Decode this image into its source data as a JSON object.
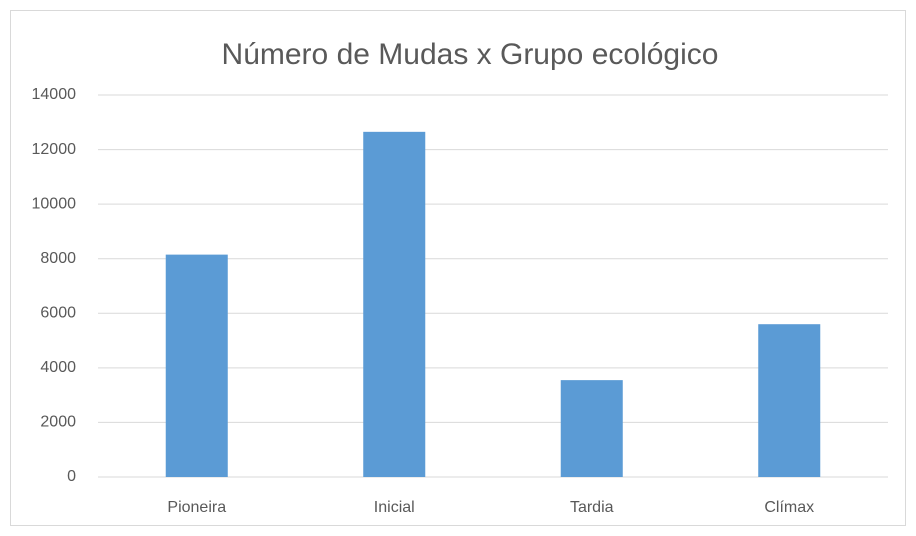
{
  "chart_data": {
    "type": "bar",
    "title": "Número de Mudas x Grupo ecológico",
    "categories": [
      "Pioneira",
      "Inicial",
      "Tardia",
      "Clímax"
    ],
    "values": [
      8150,
      12650,
      3550,
      5600
    ],
    "color": "#5b9bd5",
    "ylim": [
      0,
      14000
    ],
    "yticks": [
      0,
      2000,
      4000,
      6000,
      8000,
      10000,
      12000,
      14000
    ],
    "grid": true
  }
}
